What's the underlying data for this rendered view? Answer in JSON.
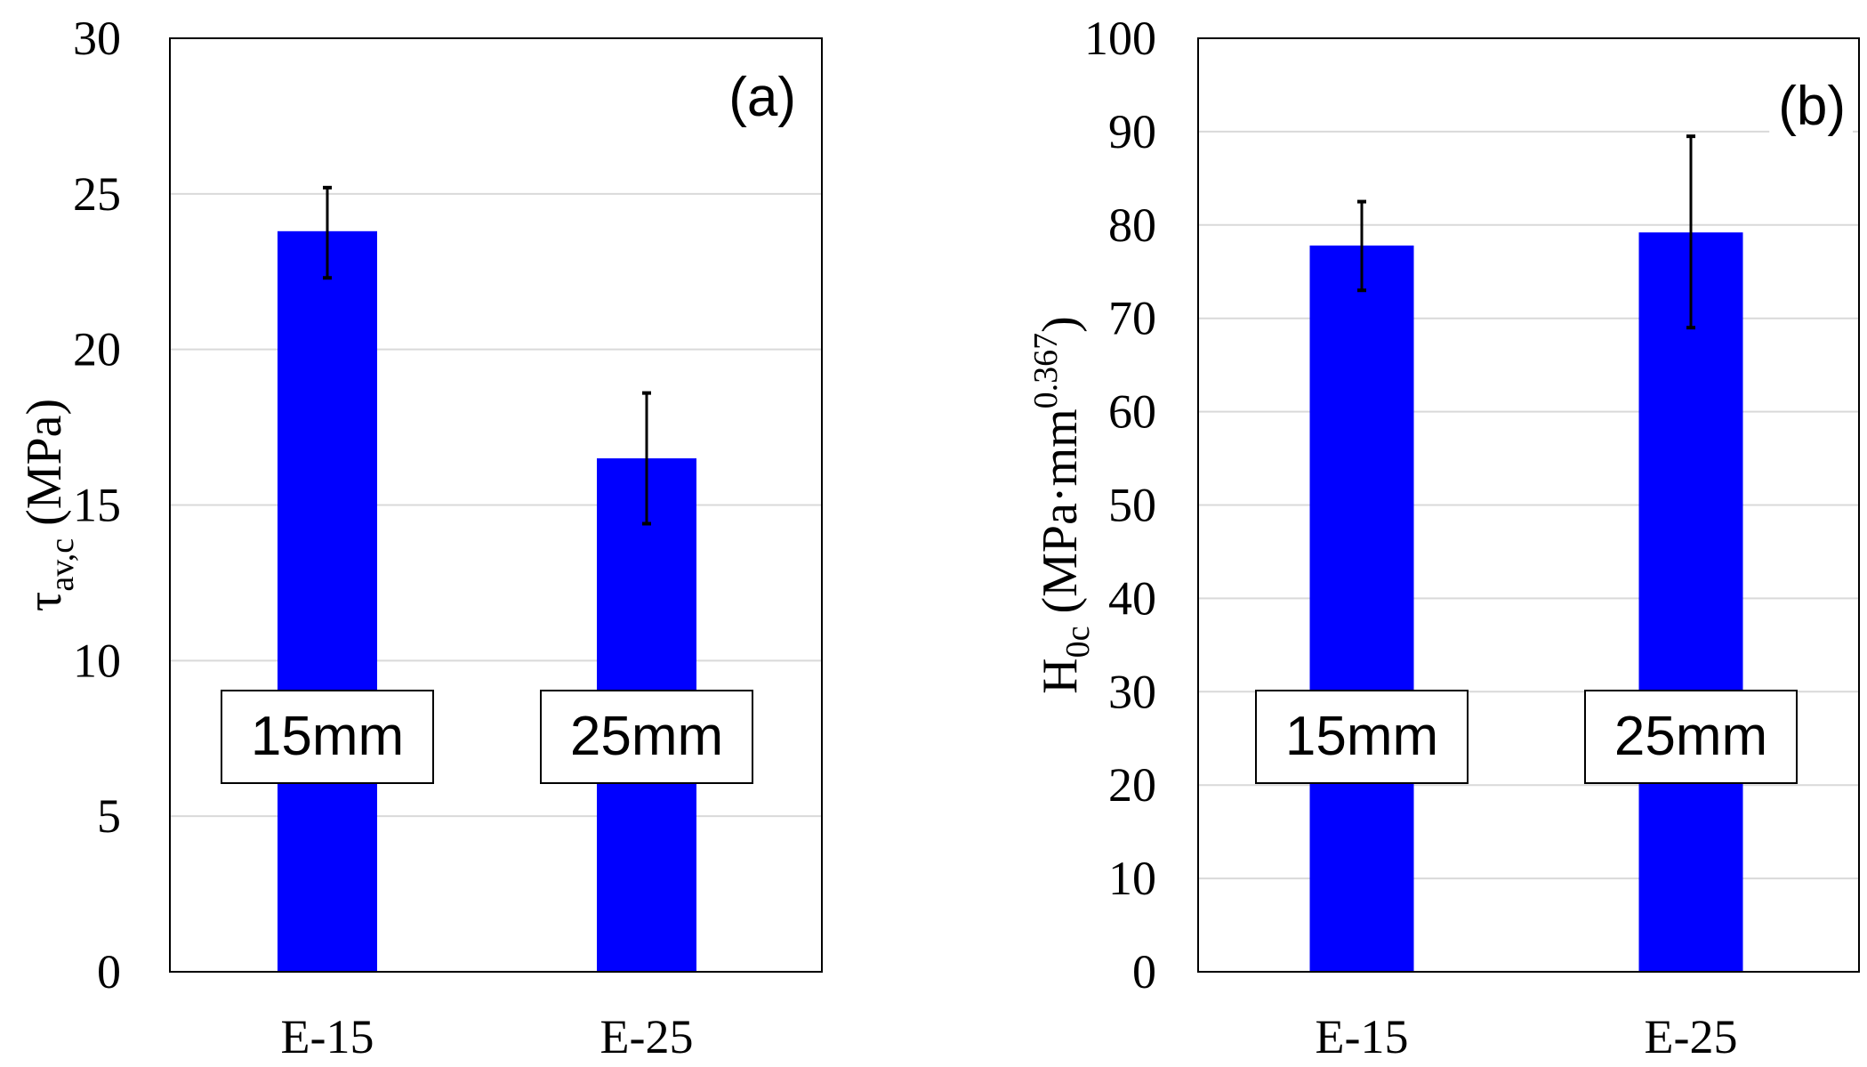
{
  "chart_data": [
    {
      "type": "bar",
      "panel_tag": "(a)",
      "categories": [
        "E-15",
        "E-25"
      ],
      "values": [
        23.8,
        16.5
      ],
      "error_low": [
        22.3,
        14.4
      ],
      "error_high": [
        25.2,
        18.6
      ],
      "bar_notes": [
        "15mm",
        "25mm"
      ],
      "ylabel": {
        "main": "τ",
        "sub": "av,c",
        "unit": " (MPa)"
      },
      "ylim": [
        0,
        30
      ],
      "yticks": [
        0,
        5,
        10,
        15,
        20,
        25,
        30
      ],
      "grid": true,
      "bar_color": "#0000ff"
    },
    {
      "type": "bar",
      "panel_tag": "(b)",
      "categories": [
        "E-15",
        "E-25"
      ],
      "values": [
        77.8,
        79.2
      ],
      "error_low": [
        73.0,
        69.0
      ],
      "error_high": [
        82.5,
        89.5
      ],
      "bar_notes": [
        "15mm",
        "25mm"
      ],
      "ylabel": {
        "main": "H",
        "sub": "0c",
        "unit": " (MPa·mm",
        "sup": "0.367",
        "close": ")"
      },
      "ylim": [
        0,
        100
      ],
      "yticks": [
        0,
        10,
        20,
        30,
        40,
        50,
        60,
        70,
        80,
        90,
        100
      ],
      "grid": true,
      "bar_color": "#0000ff"
    }
  ]
}
